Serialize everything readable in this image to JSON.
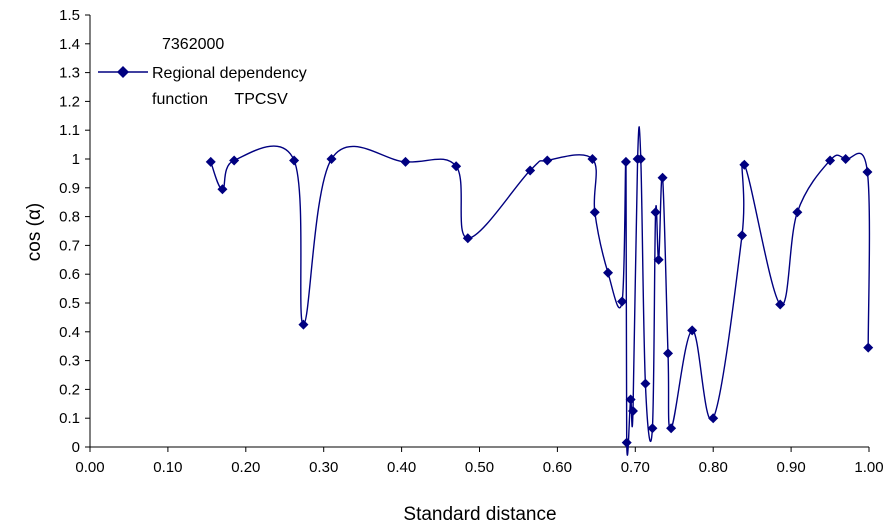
{
  "chart_data": {
    "type": "line",
    "title": "",
    "xlabel": "Standard distance",
    "ylabel": "cos (α)",
    "xlim": [
      0.0,
      1.0
    ],
    "ylim": [
      0.0,
      1.5
    ],
    "x_ticks": [
      "0.00",
      "0.10",
      "0.20",
      "0.30",
      "0.40",
      "0.50",
      "0.60",
      "0.70",
      "0.80",
      "0.90",
      "1.00"
    ],
    "y_ticks": [
      "0",
      "0.1",
      "0.2",
      "0.3",
      "0.4",
      "0.5",
      "0.6",
      "0.7",
      "0.8",
      "0.9",
      "1",
      "1.1",
      "1.2",
      "1.3",
      "1.4",
      "1.5"
    ],
    "grid": false,
    "legend_position": "top-left",
    "legend_id": "7362000",
    "legend_line1": "Regional dependency",
    "legend_line2": "function      TPCSV",
    "series": [
      {
        "name": "Regional dependency function TPCSV",
        "color": "#000080",
        "marker": "diamond",
        "x": [
          0.155,
          0.17,
          0.185,
          0.262,
          0.274,
          0.31,
          0.405,
          0.47,
          0.485,
          0.565,
          0.587,
          0.645,
          0.648,
          0.665,
          0.683,
          0.688,
          0.689,
          0.694,
          0.697,
          0.703,
          0.707,
          0.713,
          0.722,
          0.726,
          0.73,
          0.735,
          0.742,
          0.746,
          0.773,
          0.8,
          0.837,
          0.84,
          0.886,
          0.908,
          0.95,
          0.97,
          0.998,
          0.999
        ],
        "y": [
          0.99,
          0.895,
          0.995,
          0.995,
          0.425,
          1.0,
          0.99,
          0.975,
          0.725,
          0.96,
          0.995,
          1.0,
          0.815,
          0.605,
          0.505,
          0.99,
          0.015,
          0.165,
          0.125,
          1.0,
          1.0,
          0.22,
          0.065,
          0.815,
          0.65,
          0.935,
          0.325,
          0.065,
          0.405,
          0.1,
          0.735,
          0.98,
          0.495,
          0.815,
          0.995,
          1.0,
          0.955,
          0.345
        ]
      }
    ]
  }
}
